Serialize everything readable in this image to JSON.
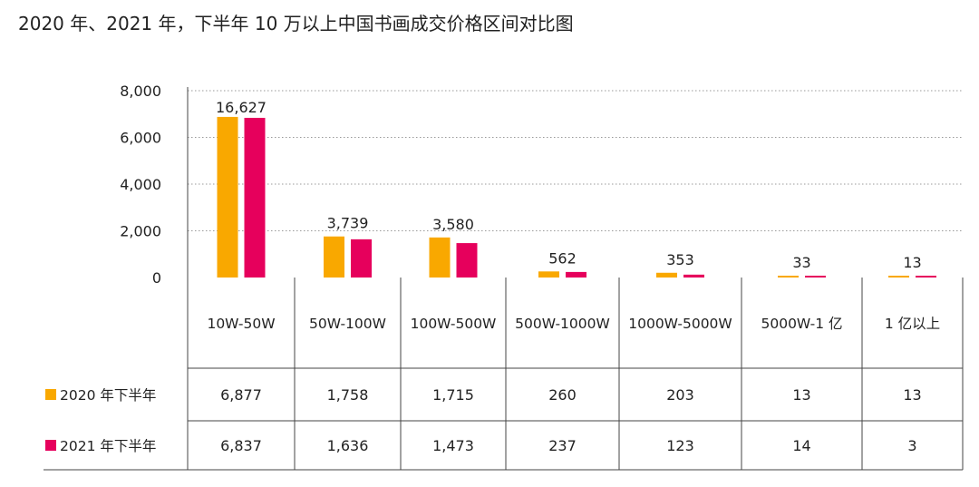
{
  "title": "2020 年、2021 年，下半年 10 万以上中国书画成交价格区间对比图",
  "chart_data": {
    "type": "bar",
    "categories": [
      "10W-50W",
      "50W-100W",
      "100W-500W",
      "500W-1000W",
      "1000W-5000W",
      "5000W-1 亿",
      "1 亿以上"
    ],
    "series": [
      {
        "name": "2020 年下半年",
        "color": "#F9A800",
        "values": [
          6877,
          1758,
          1715,
          260,
          203,
          13,
          13
        ]
      },
      {
        "name": "2021 年下半年",
        "color": "#E6005C",
        "values": [
          6837,
          1636,
          1473,
          237,
          123,
          14,
          3
        ]
      }
    ],
    "totals": [
      "16,627",
      "3,739",
      "3,580",
      "562",
      "353",
      "33",
      "13"
    ],
    "table_values": [
      [
        "6,877",
        "1,758",
        "1,715",
        "260",
        "203",
        "13",
        "13"
      ],
      [
        "6,837",
        "1,636",
        "1,473",
        "237",
        "123",
        "14",
        "3"
      ]
    ],
    "yticks": [
      "0",
      "2,000",
      "4,000",
      "6,000",
      "8,000"
    ],
    "ylim": [
      0,
      8000
    ],
    "grid": "horizontal dotted",
    "legend": "in table rows"
  }
}
